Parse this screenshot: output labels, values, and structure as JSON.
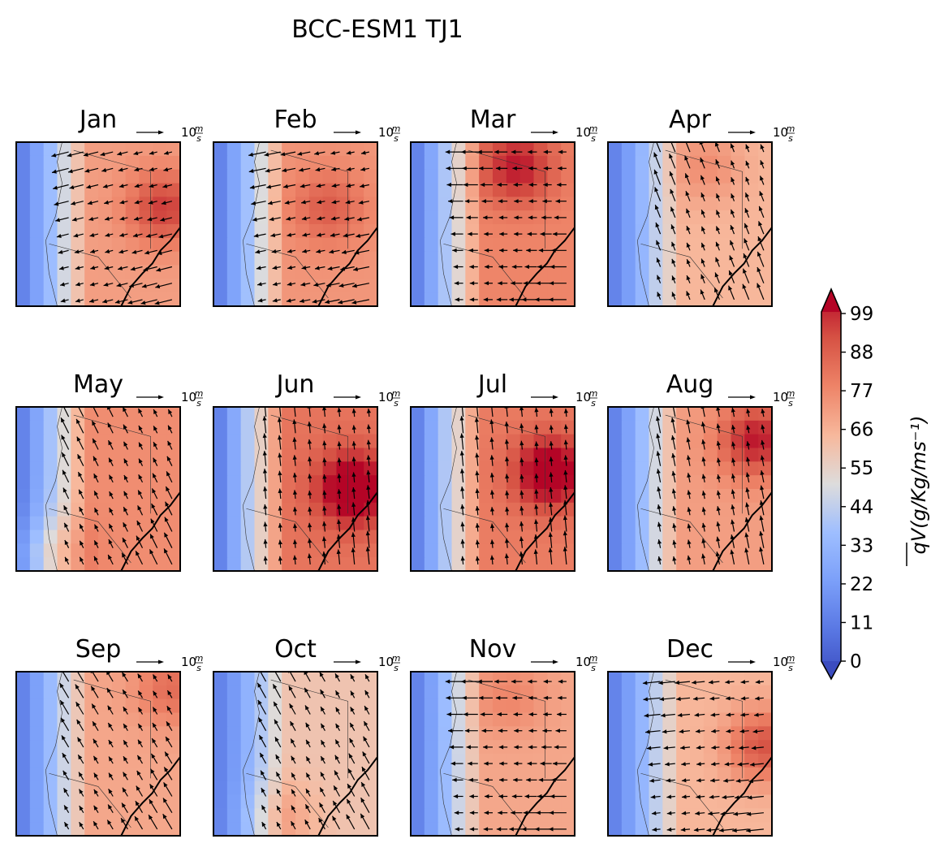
{
  "title": "BCC-ESM1 TJ1",
  "chart_data": {
    "type": "heatmap",
    "title": "BCC-ESM1 TJ1",
    "panels": [
      {
        "month": "Jan",
        "base": 68,
        "dx": -1,
        "dy": -0.25,
        "hot": [
          0.9,
          0.4
        ],
        "hotv": 22
      },
      {
        "month": "Feb",
        "base": 70,
        "dx": -1,
        "dy": -0.2,
        "hot": [
          0.7,
          0.4
        ],
        "hotv": 14
      },
      {
        "month": "Mar",
        "base": 74,
        "dx": -1,
        "dy": 0,
        "hot": [
          0.65,
          0.15
        ],
        "hotv": 22
      },
      {
        "month": "Apr",
        "base": 62,
        "dx": -0.4,
        "dy": 1,
        "hot": [
          0.6,
          0.15
        ],
        "hotv": 10
      },
      {
        "month": "May",
        "base": 72,
        "dx": -0.5,
        "dy": 1,
        "hot": [
          0.2,
          0.9
        ],
        "hotv": 14
      },
      {
        "month": "Jun",
        "base": 78,
        "dx": -0.1,
        "dy": 1,
        "hot": [
          0.85,
          0.5
        ],
        "hotv": 30
      },
      {
        "month": "Jul",
        "base": 76,
        "dx": -0.1,
        "dy": 1,
        "hot": [
          0.85,
          0.4
        ],
        "hotv": 30
      },
      {
        "month": "Aug",
        "base": 68,
        "dx": -0.2,
        "dy": 1,
        "hot": [
          0.9,
          0.2
        ],
        "hotv": 28
      },
      {
        "month": "Sep",
        "base": 66,
        "dx": -0.6,
        "dy": 1,
        "hot": [
          0.95,
          0.1
        ],
        "hotv": 14
      },
      {
        "month": "Oct",
        "base": 58,
        "dx": -0.5,
        "dy": 0.9,
        "hot": [
          0.4,
          0.9
        ],
        "hotv": 10
      },
      {
        "month": "Nov",
        "base": 66,
        "dx": -1,
        "dy": 0,
        "hot": [
          0.6,
          0.15
        ],
        "hotv": 8
      },
      {
        "month": "Dec",
        "base": 62,
        "dx": -1,
        "dy": -0.1,
        "hot": [
          0.95,
          0.45
        ],
        "hotv": 24
      }
    ],
    "quiver_key": {
      "label_num": "10",
      "label_m": "m",
      "label_s": "s"
    },
    "colorbar": {
      "label": "qV(g/Kg/ms⁻¹)",
      "ticks": [
        0,
        11,
        22,
        33,
        44,
        55,
        66,
        77,
        88,
        99
      ],
      "range": [
        0,
        99
      ],
      "colormap": "coolwarm",
      "extend": "both"
    }
  }
}
